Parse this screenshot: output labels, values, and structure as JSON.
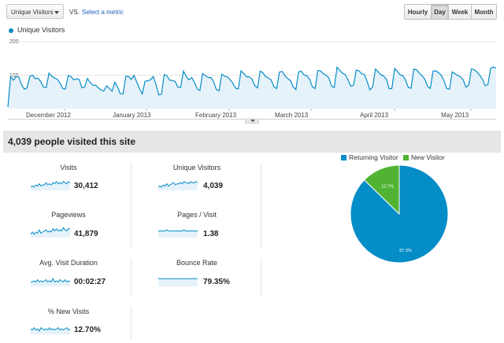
{
  "toolbar": {
    "metric_select": "Unique Visitors",
    "vs_label": "VS.",
    "select_metric_link": "Select a metric",
    "granularity": [
      "Hourly",
      "Day",
      "Week",
      "Month"
    ],
    "active_granularity": "Day"
  },
  "colors": {
    "series": "#058dc7",
    "series_fill": "#e6f2fa",
    "returning": "#058dc7",
    "new_visitor": "#50b432"
  },
  "chart_data": [
    {
      "type": "line",
      "legend": [
        "Unique Visitors"
      ],
      "legend_placement": "top-left",
      "ylim": [
        0,
        200
      ],
      "yticks": [
        "200",
        "100"
      ],
      "xticks": [
        "December 2012",
        "January 2013",
        "February 2013",
        "March 2013",
        "April 2013",
        "May 2013"
      ],
      "grid": true,
      "series": [
        {
          "name": "Unique Visitors",
          "values": [
            5,
            95,
            85,
            96,
            94,
            71,
            58,
            62,
            96,
            100,
            89,
            91,
            80,
            64,
            63,
            106,
            97,
            91,
            88,
            76,
            60,
            58,
            99,
            96,
            86,
            89,
            87,
            62,
            64,
            90,
            78,
            70,
            70,
            62,
            55,
            53,
            68,
            60,
            52,
            79,
            64,
            44,
            44,
            97,
            96,
            87,
            99,
            79,
            59,
            44,
            82,
            83,
            86,
            96,
            72,
            41,
            43,
            102,
            98,
            85,
            84,
            81,
            64,
            63,
            112,
            96,
            86,
            93,
            79,
            59,
            54,
            105,
            98,
            93,
            93,
            81,
            57,
            53,
            103,
            97,
            95,
            87,
            76,
            61,
            59,
            113,
            105,
            95,
            95,
            88,
            69,
            62,
            112,
            107,
            95,
            92,
            85,
            65,
            60,
            109,
            111,
            98,
            90,
            84,
            65,
            57,
            110,
            112,
            100,
            98,
            88,
            65,
            60,
            114,
            113,
            104,
            100,
            92,
            67,
            63,
            124,
            114,
            106,
            102,
            86,
            67,
            70,
            115,
            113,
            104,
            102,
            80,
            56,
            65,
            118,
            110,
            101,
            97,
            88,
            59,
            60,
            120,
            111,
            101,
            98,
            85,
            63,
            61,
            118,
            116,
            106,
            98,
            88,
            67,
            60,
            112,
            113,
            107,
            100,
            83,
            60,
            58,
            110,
            104,
            99,
            95,
            86,
            64,
            70,
            119,
            116,
            110,
            100,
            88,
            68,
            72,
            120,
            124,
            122
          ]
        }
      ]
    },
    {
      "type": "pie",
      "legend": [
        "Returning Visitor",
        "New Visitor"
      ],
      "legend_placement": "top",
      "slices": [
        {
          "name": "Returning Visitor",
          "value": 87.3,
          "label": "87.3%"
        },
        {
          "name": "New Visitor",
          "value": 12.7,
          "label": "12.7%"
        }
      ]
    }
  ],
  "summary": {
    "headline": "4,039 people visited this site"
  },
  "metrics": [
    {
      "label": "Visits",
      "value": "30,412",
      "spark": [
        3,
        4,
        3,
        5,
        4,
        6,
        4,
        5,
        5,
        7,
        5,
        6,
        5,
        7,
        6,
        8,
        6,
        7,
        6,
        8,
        7,
        6,
        8,
        7
      ]
    },
    {
      "label": "Unique Visitors",
      "value": "4,039",
      "spark": [
        3,
        4,
        3,
        5,
        4,
        6,
        4,
        5,
        6,
        7,
        5,
        6,
        6,
        7,
        6,
        8,
        7,
        7,
        6,
        8,
        7,
        7,
        8,
        7
      ]
    },
    {
      "label": "Pageviews",
      "value": "41,879",
      "spark": [
        3,
        5,
        3,
        5,
        4,
        7,
        4,
        5,
        6,
        7,
        5,
        6,
        5,
        8,
        6,
        8,
        6,
        7,
        6,
        9,
        7,
        6,
        8,
        8
      ]
    },
    {
      "label": "Pages / Visit",
      "value": "1.38",
      "spark": [
        6,
        6,
        6,
        6,
        6,
        7,
        6,
        6,
        6,
        6,
        6,
        6,
        6,
        6,
        6,
        7,
        6,
        6,
        6,
        6,
        6,
        6,
        6,
        6
      ]
    },
    {
      "label": "Avg. Visit Duration",
      "value": "00:02:27",
      "spark": [
        4,
        4,
        5,
        4,
        6,
        4,
        5,
        4,
        5,
        6,
        4,
        5,
        4,
        7,
        4,
        5,
        4,
        6,
        5,
        4,
        6,
        4,
        5,
        4
      ]
    },
    {
      "label": "Bounce Rate",
      "value": "79.35%",
      "spark": [
        7,
        7,
        7,
        7,
        7,
        7,
        7,
        7,
        7,
        7,
        7,
        7,
        7,
        7,
        7,
        7,
        7,
        7,
        7,
        7,
        7,
        7,
        7,
        7
      ]
    },
    {
      "label": "% New Visits",
      "value": "12.70%",
      "spark": [
        5,
        4,
        6,
        4,
        5,
        3,
        6,
        5,
        4,
        5,
        4,
        6,
        4,
        5,
        4,
        5,
        6,
        4,
        5,
        4,
        5,
        6,
        4,
        5
      ]
    }
  ]
}
